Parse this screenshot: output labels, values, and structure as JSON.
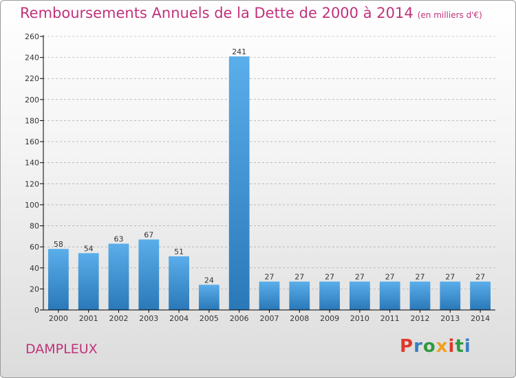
{
  "title": "Remboursements Annuels de la Dette de 2000 à 2014",
  "subtitle": "(en milliers d'€)",
  "commune": "DAMPLEUX",
  "logo": {
    "text": "Proxiti",
    "letter_colors": [
      "#e0392b",
      "#3a7fc1",
      "#2e9a3e",
      "#f0a020",
      "#e0392b",
      "#2e9a3e",
      "#3a7fc1"
    ]
  },
  "colors": {
    "title": "#c0327a",
    "bar_top": "#5aaeea",
    "bar_bottom": "#2a78b8",
    "axis": "#000000",
    "grid": "#999999"
  },
  "chart_data": {
    "type": "bar",
    "categories": [
      "2000",
      "2001",
      "2002",
      "2003",
      "2004",
      "2005",
      "2006",
      "2007",
      "2008",
      "2009",
      "2010",
      "2011",
      "2012",
      "2013",
      "2014"
    ],
    "values": [
      58,
      54,
      63,
      67,
      51,
      24,
      241,
      27,
      27,
      27,
      27,
      27,
      27,
      27,
      27
    ],
    "title": "Remboursements Annuels de la Dette de 2000 à 2014",
    "xlabel": "",
    "ylabel": "",
    "ylim": [
      0,
      260
    ],
    "yticks": [
      0,
      20,
      40,
      60,
      80,
      100,
      120,
      140,
      160,
      180,
      200,
      220,
      240,
      260
    ],
    "grid": "horizontal dashed"
  }
}
